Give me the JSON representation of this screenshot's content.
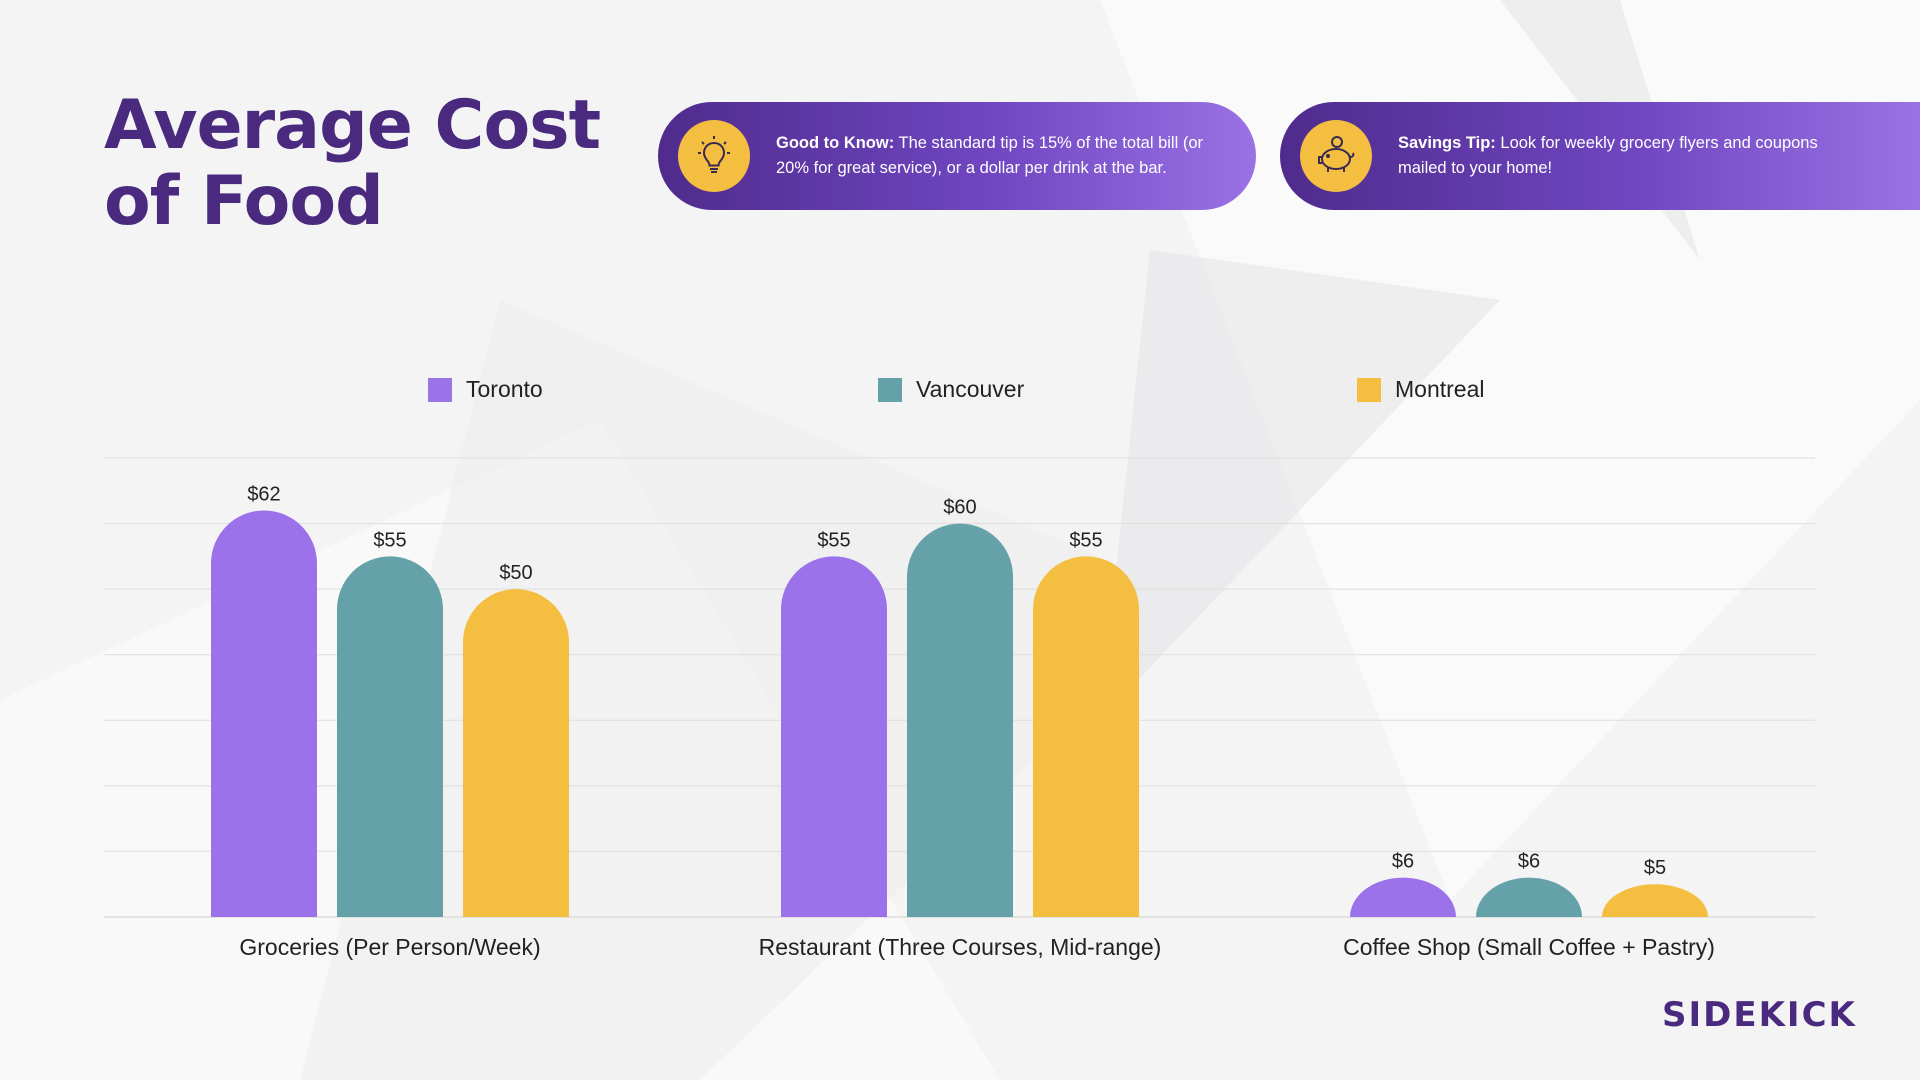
{
  "title": {
    "line1": "Average Cost",
    "line2": "of Food"
  },
  "tips": [
    {
      "label": "Good to Know:",
      "text": " The standard tip is 15% of the total bill (or 20% for great service), or a dollar per drink at the bar.",
      "icon": "lightbulb-icon"
    },
    {
      "label": "Savings Tip:",
      "text": " Look for weekly grocery flyers and coupons mailed to your home!",
      "icon": "piggy-bank-icon"
    }
  ],
  "brand": {
    "logo_text": "SIDEKICK"
  },
  "colors": {
    "toronto": "#9b72e9",
    "vancouver": "#65a1a9",
    "montreal": "#f4be41",
    "title": "#4a2a7e"
  },
  "chart_data": {
    "type": "bar",
    "categories": [
      "Groceries (Per Person/Week)",
      "Restaurant (Three Courses, Mid-range)",
      "Coffee Shop (Small Coffee + Pastry)"
    ],
    "series": [
      {
        "name": "Toronto",
        "values": [
          62,
          55,
          6
        ],
        "labels": [
          "$62",
          "$55",
          "$6"
        ]
      },
      {
        "name": "Vancouver",
        "values": [
          55,
          60,
          6
        ],
        "labels": [
          "$55",
          "$60",
          "$6"
        ]
      },
      {
        "name": "Montreal",
        "values": [
          50,
          55,
          5
        ],
        "labels": [
          "$50",
          "$55",
          "$5"
        ]
      }
    ],
    "ylim": [
      0,
      70
    ],
    "grid": true,
    "legend": "top",
    "title": "",
    "xlabel": "",
    "ylabel": ""
  }
}
